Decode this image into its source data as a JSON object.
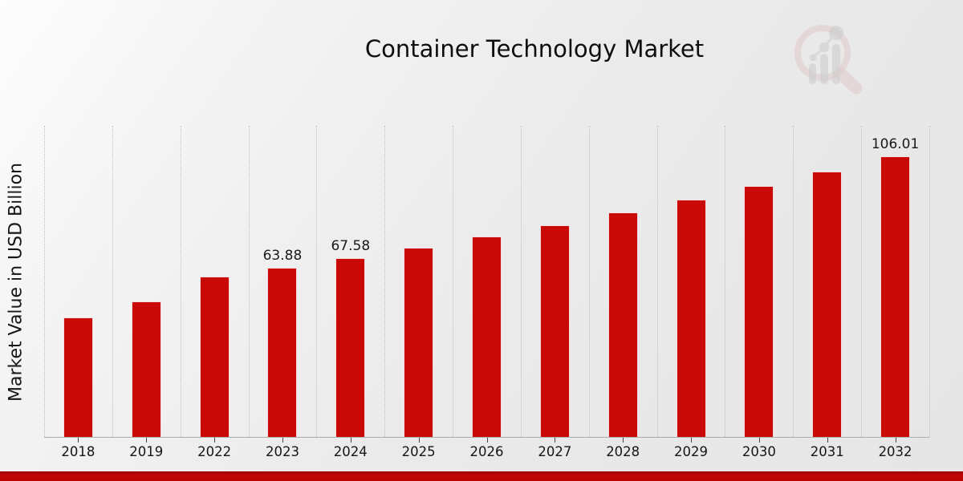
{
  "page": {
    "title": "Container Technology Market"
  },
  "chart_data": {
    "type": "bar",
    "title": "Container Technology Market",
    "xlabel": "",
    "ylabel": "Market Value in USD Billion",
    "unit": "USD Billion",
    "categories": [
      "2018",
      "2019",
      "2022",
      "2023",
      "2024",
      "2025",
      "2026",
      "2027",
      "2028",
      "2029",
      "2030",
      "2031",
      "2032"
    ],
    "values": [
      45.2,
      51.1,
      60.38,
      63.88,
      67.58,
      71.49,
      75.63,
      80.01,
      84.64,
      89.54,
      94.72,
      100.2,
      106.01
    ],
    "data_labels": [
      "",
      "",
      "",
      "63.88",
      "67.58",
      "",
      "",
      "",
      "",
      "",
      "",
      "",
      "106.01"
    ],
    "ylim": [
      0,
      118
    ],
    "grid": "vertical-dotted",
    "legend": "none",
    "bar_color": "#c90808"
  },
  "watermark": {
    "name": "mrfr-magnifier-bar-chart-logo",
    "ring_color": "#d9b2b2",
    "glyph_color": "#b9b9b9"
  },
  "colors": {
    "background": "#eaeaea",
    "bar": "#c90808",
    "band_dark": "#9c0303",
    "band_bright": "#c10505",
    "axis": "#ababab",
    "text": "#161616"
  }
}
